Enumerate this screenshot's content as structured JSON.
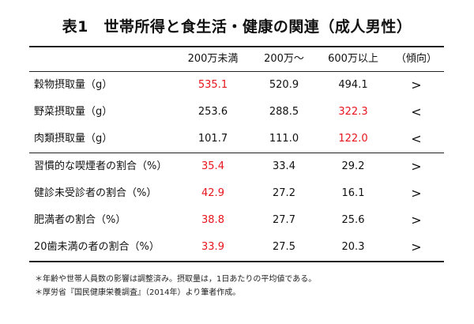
{
  "title": "表1　世帯所得と食生活・健康の関連（成人男性）",
  "table": {
    "headers": [
      "",
      "200万未満",
      "200万〜",
      "600万以上",
      "（傾向）"
    ],
    "rows": [
      {
        "label": "穀物摂取量（g）",
        "v1": "535.1",
        "v2": "520.9",
        "v3": "494.1",
        "trend": ">",
        "highlight": "v1"
      },
      {
        "label": "野菜摂取量（g）",
        "v1": "253.6",
        "v2": "288.5",
        "v3": "322.3",
        "trend": "<",
        "highlight": "v3"
      },
      {
        "label": "肉類摂取量（g）",
        "v1": "101.7",
        "v2": "111.0",
        "v3": "122.0",
        "trend": "<",
        "highlight": "v3"
      },
      {
        "label": "習慣的な喫煙者の割合（%）",
        "v1": "35.4",
        "v2": "33.4",
        "v3": "29.2",
        "trend": ">",
        "highlight": "v1"
      },
      {
        "label": "健診未受診者の割合（%）",
        "v1": "42.9",
        "v2": "27.2",
        "v3": "16.1",
        "trend": ">",
        "highlight": "v1"
      },
      {
        "label": "肥満者の割合（%）",
        "v1": "38.8",
        "v2": "27.7",
        "v3": "25.6",
        "trend": ">",
        "highlight": "v1"
      },
      {
        "label": "20歯未満の者の割合（%）",
        "v1": "33.9",
        "v2": "27.5",
        "v3": "20.3",
        "trend": ">",
        "highlight": "v1"
      }
    ]
  },
  "notes": [
    "＊年齢や世帯人員数の影響は調整済み。摂取量は，1日あたりの平均値である。",
    "＊厚労省『国民健康栄養調査』（2014年）より筆者作成。"
  ],
  "colors": {
    "highlight": "#e8141c",
    "text": "#111111"
  }
}
